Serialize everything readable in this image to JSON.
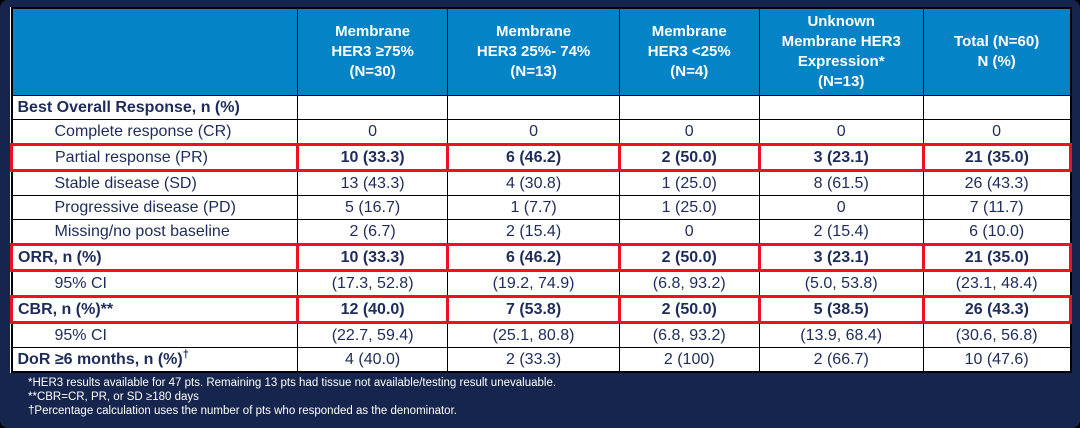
{
  "colors": {
    "header_blue": "#0583c7",
    "background_navy": "#16254e",
    "body_text_navy": "#1d2c5a",
    "highlight_red": "#ee1122",
    "border_black": "#000000",
    "cell_white": "#ffffff"
  },
  "table": {
    "headers": [
      "",
      "Membrane\nHER3 ≥75%\n(N=30)",
      "Membrane\nHER3 25%- 74%\n(N=13)",
      "Membrane\nHER3 <25%\n(N=4)",
      "Unknown\nMembrane HER3\nExpression*\n(N=13)",
      "Total (N=60)\nN (%)"
    ],
    "column_widths_pct": [
      27.0,
      14.2,
      16.2,
      13.2,
      15.5,
      13.9
    ],
    "rows": [
      {
        "label": "Best Overall Response, n (%)",
        "sup": "",
        "indent": false,
        "bold_label": true,
        "bold_values": false,
        "highlight": false,
        "values": [
          "",
          "",
          "",
          "",
          ""
        ]
      },
      {
        "label": "Complete response (CR)",
        "sup": "",
        "indent": true,
        "bold_label": false,
        "bold_values": false,
        "highlight": false,
        "values": [
          "0",
          "0",
          "0",
          "0",
          "0"
        ]
      },
      {
        "label": "Partial response (PR)",
        "sup": "",
        "indent": true,
        "bold_label": false,
        "bold_values": true,
        "highlight": true,
        "values": [
          "10 (33.3)",
          "6 (46.2)",
          "2 (50.0)",
          "3 (23.1)",
          "21 (35.0)"
        ]
      },
      {
        "label": "Stable disease (SD)",
        "sup": "",
        "indent": true,
        "bold_label": false,
        "bold_values": false,
        "highlight": false,
        "values": [
          "13 (43.3)",
          "4 (30.8)",
          "1 (25.0)",
          "8 (61.5)",
          "26 (43.3)"
        ]
      },
      {
        "label": "Progressive disease (PD)",
        "sup": "",
        "indent": true,
        "bold_label": false,
        "bold_values": false,
        "highlight": false,
        "values": [
          "5 (16.7)",
          "1 (7.7)",
          "1 (25.0)",
          "0",
          "7 (11.7)"
        ]
      },
      {
        "label": "Missing/no post baseline",
        "sup": "",
        "indent": true,
        "bold_label": false,
        "bold_values": false,
        "highlight": false,
        "values": [
          "2 (6.7)",
          "2 (15.4)",
          "0",
          "2 (15.4)",
          "6 (10.0)"
        ]
      },
      {
        "label": "ORR, n (%)",
        "sup": "",
        "indent": false,
        "bold_label": true,
        "bold_values": true,
        "highlight": true,
        "values": [
          "10 (33.3)",
          "6 (46.2)",
          "2 (50.0)",
          "3 (23.1)",
          "21 (35.0)"
        ]
      },
      {
        "label": "95% CI",
        "sup": "",
        "indent": true,
        "bold_label": false,
        "bold_values": false,
        "highlight": false,
        "values": [
          "(17.3, 52.8)",
          "(19.2, 74.9)",
          "(6.8, 93.2)",
          "(5.0, 53.8)",
          "(23.1, 48.4)"
        ]
      },
      {
        "label": "CBR, n (%)**",
        "sup": "",
        "indent": false,
        "bold_label": true,
        "bold_values": true,
        "highlight": true,
        "values": [
          "12 (40.0)",
          "7 (53.8)",
          "2 (50.0)",
          "5 (38.5)",
          "26 (43.3)"
        ]
      },
      {
        "label": "95% CI",
        "sup": "",
        "indent": true,
        "bold_label": false,
        "bold_values": false,
        "highlight": false,
        "values": [
          "(22.7, 59.4)",
          "(25.1, 80.8)",
          "(6.8, 93.2)",
          "(13.9, 68.4)",
          "(30.6, 56.8)"
        ]
      },
      {
        "label": "DoR ≥6 months, n (%)",
        "sup": "†",
        "indent": false,
        "bold_label": true,
        "bold_values": false,
        "highlight": false,
        "values": [
          "4 (40.0)",
          "2 (33.3)",
          "2 (100)",
          "2 (66.7)",
          "10 (47.6)"
        ]
      }
    ]
  },
  "footnotes": [
    "*HER3 results available for 47 pts. Remaining 13 pts had tissue not available/testing result unevaluable.",
    "**CBR=CR, PR, or SD ≥180 days",
    "†Percentage calculation uses the number of pts who responded as the denominator."
  ]
}
